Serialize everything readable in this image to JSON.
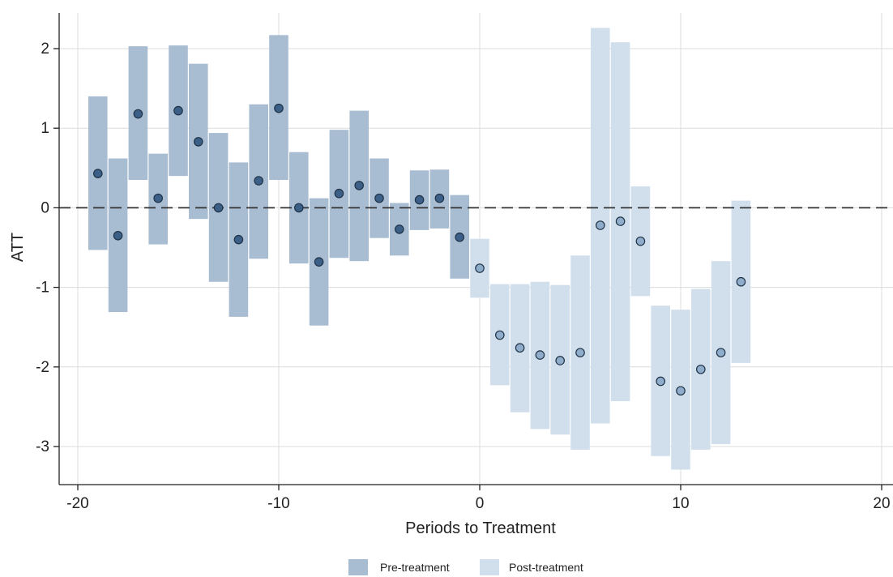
{
  "chart_data": {
    "type": "scatter",
    "xlabel": "Periods to Treatment",
    "ylabel": "ATT",
    "xlim": [
      -20,
      20
    ],
    "ylim": [
      -3.45,
      2.4
    ],
    "xticks": [
      -20,
      -10,
      0,
      10,
      20
    ],
    "yticks": [
      2,
      1,
      0,
      -1,
      -2,
      -3
    ],
    "xtick_labels": [
      "-20",
      "-10",
      "0",
      "10",
      "20"
    ],
    "ytick_labels": [
      "2",
      "1",
      "0",
      "-1",
      "-2",
      "-3"
    ],
    "grid": true,
    "reference_line": 0,
    "legend_position": "bottom",
    "colors": {
      "pre_bar": "#a9bdd2",
      "pre_dot": "#3b5f86",
      "post_bar": "#d1dfec",
      "post_dot": "#8fadcb",
      "dot_edge": "#1f3247",
      "grid": "#dcdcdc",
      "reference": "#333333"
    },
    "series": [
      {
        "name": "Pre-treatment",
        "points": [
          {
            "x": -19,
            "y": 0.43,
            "lo": -0.53,
            "hi": 1.4
          },
          {
            "x": -18,
            "y": -0.35,
            "lo": -1.31,
            "hi": 0.62
          },
          {
            "x": -17,
            "y": 1.18,
            "lo": 0.35,
            "hi": 2.03
          },
          {
            "x": -16,
            "y": 0.12,
            "lo": -0.46,
            "hi": 0.68
          },
          {
            "x": -15,
            "y": 1.22,
            "lo": 0.4,
            "hi": 2.04
          },
          {
            "x": -14,
            "y": 0.83,
            "lo": -0.14,
            "hi": 1.81
          },
          {
            "x": -13,
            "y": 0.0,
            "lo": -0.93,
            "hi": 0.94
          },
          {
            "x": -12,
            "y": -0.4,
            "lo": -1.37,
            "hi": 0.57
          },
          {
            "x": -11,
            "y": 0.34,
            "lo": -0.64,
            "hi": 1.3
          },
          {
            "x": -10,
            "y": 1.25,
            "lo": 0.35,
            "hi": 2.17
          },
          {
            "x": -9,
            "y": 0.0,
            "lo": -0.7,
            "hi": 0.7
          },
          {
            "x": -8,
            "y": -0.68,
            "lo": -1.48,
            "hi": 0.12
          },
          {
            "x": -7,
            "y": 0.18,
            "lo": -0.63,
            "hi": 0.98
          },
          {
            "x": -6,
            "y": 0.28,
            "lo": -0.67,
            "hi": 1.22
          },
          {
            "x": -5,
            "y": 0.12,
            "lo": -0.38,
            "hi": 0.62
          },
          {
            "x": -4,
            "y": -0.27,
            "lo": -0.6,
            "hi": 0.06
          },
          {
            "x": -3,
            "y": 0.1,
            "lo": -0.28,
            "hi": 0.47
          },
          {
            "x": -2,
            "y": 0.12,
            "lo": -0.26,
            "hi": 0.48
          },
          {
            "x": -1,
            "y": -0.37,
            "lo": -0.89,
            "hi": 0.16
          }
        ]
      },
      {
        "name": "Post-treatment",
        "points": [
          {
            "x": 0,
            "y": -0.76,
            "lo": -1.13,
            "hi": -0.39
          },
          {
            "x": 1,
            "y": -1.6,
            "lo": -2.23,
            "hi": -0.96
          },
          {
            "x": 2,
            "y": -1.76,
            "lo": -2.57,
            "hi": -0.96
          },
          {
            "x": 3,
            "y": -1.85,
            "lo": -2.78,
            "hi": -0.93
          },
          {
            "x": 4,
            "y": -1.92,
            "lo": -2.85,
            "hi": -0.97
          },
          {
            "x": 5,
            "y": -1.82,
            "lo": -3.04,
            "hi": -0.6
          },
          {
            "x": 6,
            "y": -0.22,
            "lo": -2.71,
            "hi": 2.26
          },
          {
            "x": 7,
            "y": -0.17,
            "lo": -2.43,
            "hi": 2.08
          },
          {
            "x": 8,
            "y": -0.42,
            "lo": -1.11,
            "hi": 0.27
          },
          {
            "x": 9,
            "y": -2.18,
            "lo": -3.12,
            "hi": -1.23
          },
          {
            "x": 10,
            "y": -2.3,
            "lo": -3.29,
            "hi": -1.28
          },
          {
            "x": 11,
            "y": -2.03,
            "lo": -3.04,
            "hi": -1.02
          },
          {
            "x": 12,
            "y": -1.82,
            "lo": -2.97,
            "hi": -0.67
          },
          {
            "x": 13,
            "y": -0.93,
            "lo": -1.95,
            "hi": 0.09
          }
        ]
      }
    ]
  }
}
